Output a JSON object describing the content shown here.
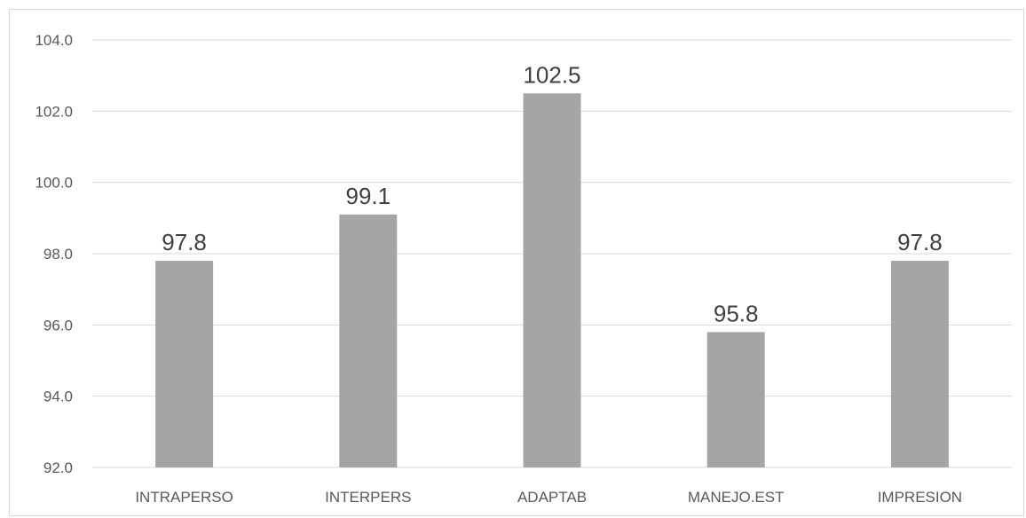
{
  "chart_data": {
    "type": "bar",
    "categories": [
      "INTRAPERSO",
      "INTERPERS",
      "ADAPTAB",
      "MANEJO.EST",
      "IMPRESION"
    ],
    "values": [
      97.8,
      99.1,
      102.5,
      95.8,
      97.8
    ],
    "data_labels": [
      "97.8",
      "99.1",
      "102.5",
      "95.8",
      "97.8"
    ],
    "title": "",
    "xlabel": "",
    "ylabel": "",
    "ylim": [
      92,
      104
    ],
    "yticks": [
      92.0,
      94.0,
      96.0,
      98.0,
      100.0,
      102.0,
      104.0
    ],
    "ytick_labels": [
      "92.0",
      "94.0",
      "96.0",
      "98.0",
      "100.0",
      "102.0",
      "104.0"
    ],
    "grid": true,
    "legend": "none",
    "bar_color": "#a5a5a5"
  }
}
